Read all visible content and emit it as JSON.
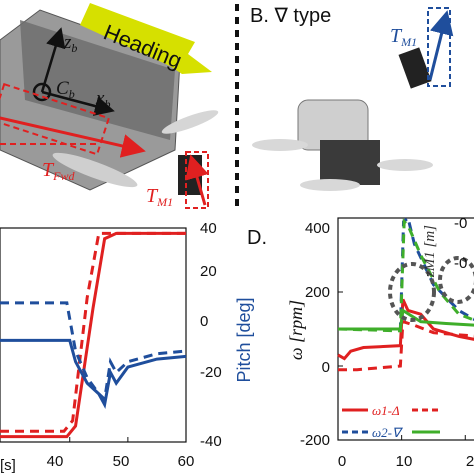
{
  "top_left": {
    "heading_label": "Heading",
    "axis_z": "z",
    "axis_z_sub": "b",
    "axis_x": "x",
    "axis_x_sub": "b",
    "center_label": "C",
    "center_sub": "b",
    "force_fwd": "T",
    "force_fwd_sub": "Fwd",
    "force_m1": "T",
    "force_m1_sub": "M1"
  },
  "top_right": {
    "panel_label": "B. ∇ type",
    "force_m1": "T",
    "force_m1_sub": "M1"
  },
  "colors": {
    "red": "#e02020",
    "blue": "#1f4e9c",
    "green": "#3fae2a",
    "heading": "#d6e000"
  },
  "chart_data": [
    {
      "type": "line",
      "panel": "C",
      "x_ticks": [
        "40",
        "50",
        "60"
      ],
      "x_label_fragment": "[s]",
      "xlim": [
        28,
        60
      ],
      "y_right_label": "Pitch [deg]",
      "y_right_ticks": [
        "40",
        "20",
        "0",
        "-20",
        "-40"
      ],
      "y_right_lim": [
        -40,
        40
      ],
      "series": [
        {
          "color": "red",
          "style": "solid",
          "x": [
            28,
            39.5,
            41,
            44,
            46,
            48,
            60
          ],
          "y": [
            -38,
            -38,
            -34,
            10,
            36,
            38,
            38
          ]
        },
        {
          "color": "red",
          "style": "dashed",
          "x": [
            28,
            39,
            40.5,
            43,
            45,
            47,
            60
          ],
          "y": [
            -36,
            -36,
            -32,
            14,
            38,
            38,
            38
          ]
        },
        {
          "color": "blue",
          "style": "solid",
          "x": [
            28,
            40,
            41,
            43,
            45,
            46,
            47,
            48,
            50,
            55,
            60
          ],
          "y": [
            -2,
            -2,
            -10,
            -18,
            -22,
            -26,
            -14,
            -18,
            -12,
            -9,
            -8
          ]
        },
        {
          "color": "blue",
          "style": "dashed",
          "x": [
            28,
            39.5,
            41,
            43,
            45,
            46,
            47,
            48,
            50,
            55,
            60
          ],
          "y": [
            12,
            12,
            -6,
            -16,
            -22,
            -24,
            -10,
            -14,
            -10,
            -7,
            -6
          ]
        }
      ]
    },
    {
      "type": "line",
      "panel": "D",
      "panel_label": "D.",
      "y_label": "ω [rpm]",
      "y_ticks": [
        "400",
        "200",
        "0",
        "-200"
      ],
      "ylim": [
        -200,
        400
      ],
      "x_ticks": [
        "0",
        "10",
        "2"
      ],
      "xlim": [
        0,
        22
      ],
      "y_right_label_fragment": "zM1 [m]",
      "y_right_ticks_partial": [
        "-0",
        "-0"
      ],
      "legend": {
        "position": "bottom-left",
        "entries": [
          "ω1-Δ",
          "ω2-∇"
        ]
      },
      "series": [
        {
          "color": "red",
          "style": "solid",
          "x": [
            0,
            1,
            2,
            4,
            9.8,
            10.2,
            11,
            13,
            15,
            19,
            22
          ],
          "y": [
            30,
            20,
            40,
            50,
            55,
            180,
            150,
            140,
            100,
            80,
            70
          ]
        },
        {
          "color": "red",
          "style": "dashed",
          "x": [
            0,
            3,
            9.8,
            10.2,
            12,
            15,
            22
          ],
          "y": [
            -10,
            -10,
            0,
            120,
            110,
            90,
            80
          ]
        },
        {
          "color": "blue",
          "style": "dashed",
          "x": [
            0,
            9.8,
            10.3,
            11,
            12,
            15,
            19,
            22
          ],
          "y": [
            100,
            100,
            390,
            400,
            330,
            220,
            150,
            120
          ]
        },
        {
          "color": "green",
          "style": "solid",
          "x": [
            0,
            9.8,
            10.2,
            13,
            17,
            22
          ],
          "y": [
            100,
            100,
            150,
            120,
            115,
            110
          ]
        },
        {
          "color": "green",
          "style": "dashed",
          "x": [
            0,
            9.8,
            10.4,
            11,
            13,
            16,
            19,
            22
          ],
          "y": [
            100,
            95,
            390,
            380,
            300,
            200,
            140,
            120
          ]
        }
      ]
    }
  ]
}
